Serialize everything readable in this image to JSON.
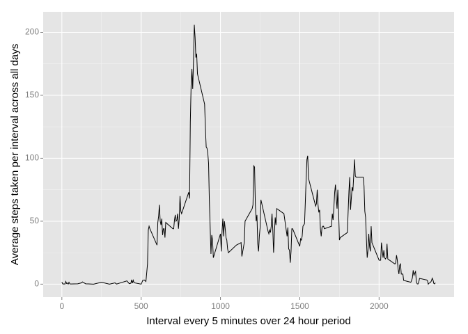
{
  "chart_data": {
    "type": "line",
    "x_label": "Interval every 5 minutes over 24 hour period",
    "y_label": "Average steps taken per interval across all days",
    "x": [
      0,
      5,
      10,
      15,
      20,
      25,
      30,
      35,
      40,
      45,
      50,
      55,
      100,
      125,
      130,
      150,
      200,
      250,
      300,
      335,
      345,
      410,
      425,
      435,
      440,
      445,
      450,
      455,
      500,
      505,
      510,
      520,
      530,
      540,
      545,
      550,
      555,
      600,
      605,
      610,
      615,
      620,
      625,
      630,
      635,
      640,
      645,
      650,
      655,
      700,
      705,
      710,
      715,
      720,
      725,
      730,
      735,
      740,
      745,
      750,
      755,
      800,
      805,
      810,
      815,
      820,
      825,
      830,
      835,
      840,
      845,
      850,
      855,
      900,
      905,
      910,
      915,
      920,
      925,
      930,
      935,
      940,
      945,
      950,
      955,
      1000,
      1005,
      1010,
      1015,
      1020,
      1025,
      1030,
      1035,
      1040,
      1045,
      1050,
      1100,
      1130,
      1135,
      1150,
      1155,
      1200,
      1205,
      1210,
      1215,
      1220,
      1225,
      1230,
      1235,
      1240,
      1245,
      1250,
      1255,
      1300,
      1305,
      1310,
      1315,
      1320,
      1325,
      1330,
      1335,
      1340,
      1345,
      1350,
      1355,
      1400,
      1420,
      1425,
      1430,
      1435,
      1440,
      1445,
      1450,
      1455,
      1500,
      1505,
      1510,
      1515,
      1520,
      1525,
      1530,
      1535,
      1540,
      1545,
      1550,
      1555,
      1600,
      1605,
      1610,
      1615,
      1620,
      1625,
      1630,
      1635,
      1640,
      1645,
      1650,
      1655,
      1700,
      1705,
      1710,
      1715,
      1720,
      1725,
      1730,
      1735,
      1740,
      1745,
      1750,
      1755,
      1800,
      1805,
      1810,
      1815,
      1820,
      1825,
      1830,
      1835,
      1840,
      1845,
      1850,
      1855,
      1900,
      1905,
      1910,
      1915,
      1920,
      1925,
      1930,
      1935,
      1940,
      1945,
      1950,
      1955,
      2000,
      2005,
      2010,
      2015,
      2020,
      2025,
      2030,
      2035,
      2040,
      2045,
      2050,
      2055,
      2100,
      2105,
      2110,
      2115,
      2120,
      2125,
      2130,
      2135,
      2140,
      2145,
      2150,
      2155,
      2200,
      2205,
      2210,
      2215,
      2220,
      2225,
      2230,
      2235,
      2240,
      2245,
      2250,
      2255,
      2300,
      2305,
      2310,
      2315,
      2320,
      2325,
      2330,
      2335,
      2340,
      2345,
      2350,
      2355
    ],
    "series": [
      {
        "color": "#000000",
        "values": [
          1.7,
          0.3,
          0.1,
          0.2,
          0.1,
          2.1,
          0.5,
          0.9,
          0,
          1.5,
          0.3,
          0.1,
          0.3,
          1.1,
          1.8,
          0.3,
          0,
          1.5,
          0,
          1,
          0.1,
          2.6,
          0.4,
          0.7,
          3.5,
          0.8,
          3.1,
          1.1,
          0,
          1.5,
          3,
          3.3,
          2.1,
          16,
          43,
          46,
          44,
          31,
          49,
          54,
          63,
          50,
          47,
          52,
          39,
          44,
          44,
          37,
          49,
          44,
          44,
          51,
          55,
          50,
          51,
          56,
          44,
          52,
          70,
          58,
          56,
          73,
          68,
          129,
          158,
          171,
          155,
          177,
          206,
          196,
          180,
          183,
          167,
          143,
          124,
          109,
          108,
          104,
          96,
          66,
          45,
          24,
          39,
          35,
          21,
          40,
          26,
          42,
          52,
          38,
          50,
          44,
          37,
          35,
          28,
          25,
          31,
          33,
          22,
          33,
          50,
          60,
          63,
          94,
          93,
          63,
          50,
          55,
          32,
          26,
          38,
          45,
          67,
          42,
          40,
          43,
          41,
          46,
          56,
          43,
          25,
          40,
          53,
          47,
          60,
          56,
          38,
          45,
          28,
          27,
          17,
          26,
          44,
          44,
          30,
          36,
          35,
          38,
          46,
          47,
          48,
          65,
          83,
          99,
          102,
          84,
          62,
          64,
          75,
          63,
          57,
          59,
          44,
          38,
          45,
          46,
          46,
          44,
          46,
          56,
          51,
          61,
          73,
          79,
          68,
          60,
          75,
          57,
          35,
          37,
          41,
          58,
          74,
          85,
          59,
          68,
          77,
          74,
          86,
          99,
          86,
          85,
          85,
          78,
          58,
          53,
          36,
          21,
          27,
          40,
          30,
          26,
          46,
          33,
          19,
          19,
          19,
          33,
          27,
          21,
          27,
          21,
          20,
          21,
          32,
          20,
          16,
          17,
          23,
          19,
          12,
          8,
          15,
          16,
          8,
          8,
          8,
          3,
          1.5,
          3,
          5,
          11,
          7,
          8.7,
          10,
          2,
          0.3,
          0.1,
          1.6,
          4.6,
          3.3,
          2.8,
          0,
          0.8,
          1,
          1.6,
          2.6,
          4.7,
          3.3,
          0.6,
          0.2,
          1.1
        ]
      }
    ],
    "xlim": [
      -117.75,
      2472.75
    ],
    "ylim": [
      -10.3,
      216.3
    ],
    "xticks": [
      0,
      500,
      1000,
      1500,
      2000
    ],
    "yticks": [
      0,
      50,
      100,
      150,
      200
    ],
    "grid": true,
    "minor_grid": true,
    "background": "#e5e5e5"
  }
}
